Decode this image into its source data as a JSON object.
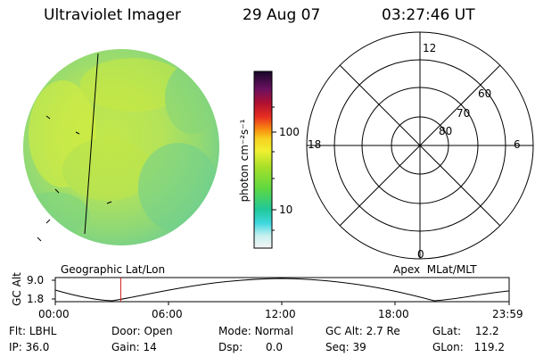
{
  "header": {
    "instrument": "Ultraviolet Imager",
    "date": "29 Aug 07",
    "time": "03:27:46 UT"
  },
  "colorbar": {
    "unit_label": "photon cm⁻²s⁻¹",
    "ticks": [
      "100",
      "10"
    ]
  },
  "polar_plot": {
    "mlt_labels": {
      "top": "12",
      "left": "18",
      "right": "6",
      "bottom": "0"
    },
    "lat_labels": [
      "60",
      "70",
      "80"
    ]
  },
  "orbit_panel": {
    "left_title": "Geographic Lat/Lon",
    "right_title": "Apex  MLat/MLT",
    "y_axis_label": "GC Alt",
    "y_ticks": [
      "9.0",
      "1.8"
    ],
    "x_ticks": [
      "00:00",
      "06:00",
      "12:00",
      "18:00",
      "23:59"
    ],
    "marker_time_hours": 3.46,
    "marker_color": "#d01818"
  },
  "status": {
    "row1": [
      {
        "label": "Flt:",
        "value": "LBHL"
      },
      {
        "label": "Door:",
        "value": "Open"
      },
      {
        "label": "Mode:",
        "value": "Normal"
      },
      {
        "label": "GC Alt:",
        "value": "2.7 Re"
      },
      {
        "label": "GLat:",
        "value": "12.2"
      }
    ],
    "row2": [
      {
        "label": "IP:",
        "value": "36.0"
      },
      {
        "label": "Gain:",
        "value": "14"
      },
      {
        "label": "Dsp:",
        "value": "0.0"
      },
      {
        "label": "Seq:",
        "value": "39"
      },
      {
        "label": "GLon:",
        "value": "119.2"
      }
    ]
  }
}
